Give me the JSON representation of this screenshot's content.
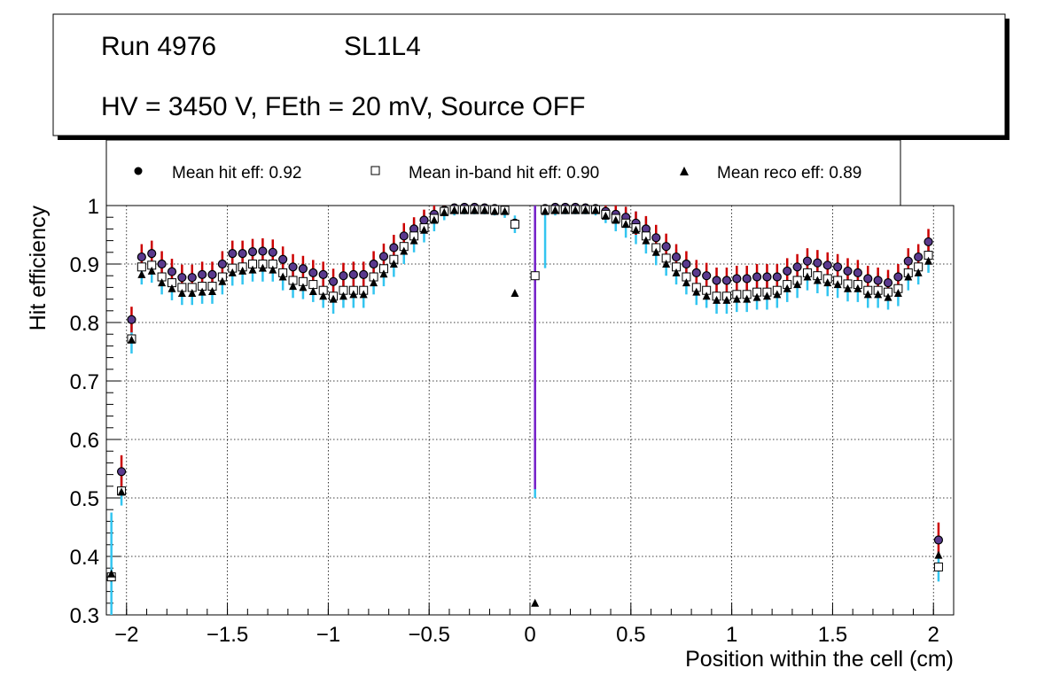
{
  "header": {
    "run": "Run 4976",
    "layer": "SL1L4",
    "conditions": "HV = 3450 V, FEth = 20 mV, Source OFF"
  },
  "legend": {
    "hit": "Mean hit  eff: 0.92",
    "inband": "Mean in-band hit eff: 0.90",
    "reco": "Mean reco eff: 0.89"
  },
  "colors": {
    "hit_err": "#cc0000",
    "inband_err": "#33c5f0",
    "center_err": "#7a1fc8",
    "marker_hit_fill": "#5a3a8e"
  },
  "chart_data": {
    "type": "scatter",
    "xlabel": "Position within the cell (cm)",
    "ylabel": "Hit efficiency",
    "xlim": [
      -2.1,
      2.1
    ],
    "ylim": [
      0.3,
      1.0
    ],
    "xticks": [
      -2,
      -1.5,
      -1,
      -0.5,
      0,
      0.5,
      1,
      1.5,
      2
    ],
    "xtick_labels": [
      "−2",
      "−1.5",
      "−1",
      "−0.5",
      "0",
      "0.5",
      "1",
      "1.5",
      "2"
    ],
    "yticks": [
      0.3,
      0.4,
      0.5,
      0.6,
      0.7,
      0.8,
      0.9,
      1.0
    ],
    "ytick_labels": [
      "0.3",
      "0.4",
      "0.5",
      "0.6",
      "0.7",
      "0.8",
      "0.9",
      "1"
    ],
    "grid": true,
    "x": [
      -2.075,
      -2.025,
      -1.975,
      -1.925,
      -1.875,
      -1.825,
      -1.775,
      -1.725,
      -1.675,
      -1.625,
      -1.575,
      -1.525,
      -1.475,
      -1.425,
      -1.375,
      -1.325,
      -1.275,
      -1.225,
      -1.175,
      -1.125,
      -1.075,
      -1.025,
      -0.975,
      -0.925,
      -0.875,
      -0.825,
      -0.775,
      -0.725,
      -0.675,
      -0.625,
      -0.575,
      -0.525,
      -0.475,
      -0.425,
      -0.375,
      -0.325,
      -0.275,
      -0.225,
      -0.175,
      -0.125,
      -0.075,
      -0.025,
      0.025,
      0.075,
      0.125,
      0.175,
      0.225,
      0.275,
      0.325,
      0.375,
      0.425,
      0.475,
      0.525,
      0.575,
      0.625,
      0.675,
      0.725,
      0.775,
      0.825,
      0.875,
      0.925,
      0.975,
      1.025,
      1.075,
      1.125,
      1.175,
      1.225,
      1.275,
      1.325,
      1.375,
      1.425,
      1.475,
      1.525,
      1.575,
      1.625,
      1.675,
      1.725,
      1.775,
      1.825,
      1.875,
      1.925,
      1.975,
      2.025
    ],
    "series": [
      {
        "name": "Mean hit eff",
        "marker": "circle",
        "values": [
          0.365,
          0.545,
          0.805,
          0.912,
          0.918,
          0.9,
          0.887,
          0.877,
          0.877,
          0.882,
          0.882,
          0.9,
          0.918,
          0.918,
          0.921,
          0.922,
          0.92,
          0.908,
          0.895,
          0.892,
          0.885,
          0.882,
          0.87,
          0.88,
          0.882,
          0.882,
          0.9,
          0.913,
          0.928,
          0.948,
          0.96,
          0.975,
          0.985,
          0.992,
          0.996,
          0.997,
          0.997,
          0.996,
          0.995,
          0.993,
          0.97,
          null,
          null,
          0.995,
          0.997,
          0.997,
          0.997,
          0.996,
          0.995,
          0.99,
          0.985,
          0.98,
          0.97,
          0.96,
          0.945,
          0.93,
          0.912,
          0.9,
          0.885,
          0.88,
          0.872,
          0.872,
          0.875,
          0.875,
          0.878,
          0.878,
          0.878,
          0.888,
          0.895,
          0.905,
          0.902,
          0.898,
          0.895,
          0.888,
          0.885,
          0.875,
          0.872,
          0.868,
          0.878,
          0.905,
          0.912,
          0.938,
          0.428
        ],
        "err": [
          0,
          0.028,
          0.022,
          0.022,
          0.022,
          0.022,
          0.022,
          0.022,
          0.022,
          0.022,
          0.022,
          0.022,
          0.022,
          0.022,
          0.022,
          0.022,
          0.022,
          0.022,
          0.022,
          0.022,
          0.022,
          0.022,
          0.022,
          0.022,
          0.022,
          0.022,
          0.022,
          0.022,
          0.022,
          0.022,
          0.02,
          0.018,
          0.015,
          0.008,
          0.004,
          0.003,
          0.003,
          0.003,
          0.004,
          0.006,
          0,
          0,
          0,
          0.004,
          0.003,
          0.003,
          0.003,
          0.004,
          0.006,
          0.01,
          0.015,
          0.018,
          0.02,
          0.022,
          0.022,
          0.022,
          0.022,
          0.022,
          0.022,
          0.022,
          0.022,
          0.022,
          0.022,
          0.022,
          0.022,
          0.022,
          0.022,
          0.022,
          0.022,
          0.022,
          0.022,
          0.022,
          0.022,
          0.022,
          0.022,
          0.022,
          0.022,
          0.022,
          0.022,
          0.022,
          0.022,
          0.022,
          0.03
        ]
      },
      {
        "name": "Mean in-band hit eff",
        "marker": "open-square",
        "values": [
          0.365,
          0.512,
          0.772,
          0.895,
          0.898,
          0.878,
          0.868,
          0.86,
          0.86,
          0.862,
          0.862,
          0.878,
          0.893,
          0.895,
          0.9,
          0.9,
          0.9,
          0.885,
          0.872,
          0.87,
          0.865,
          0.855,
          0.845,
          0.855,
          0.855,
          0.855,
          0.878,
          0.892,
          0.908,
          0.93,
          0.948,
          0.962,
          0.978,
          0.99,
          0.993,
          0.993,
          0.993,
          0.993,
          0.993,
          0.992,
          0.968,
          null,
          0.88,
          0.993,
          0.993,
          0.993,
          0.993,
          0.993,
          0.993,
          0.985,
          0.978,
          0.97,
          0.962,
          0.948,
          0.928,
          0.91,
          0.895,
          0.878,
          0.86,
          0.855,
          0.845,
          0.845,
          0.848,
          0.848,
          0.852,
          0.852,
          0.855,
          0.865,
          0.872,
          0.885,
          0.88,
          0.875,
          0.872,
          0.866,
          0.865,
          0.855,
          0.855,
          0.852,
          0.858,
          0.885,
          0.895,
          0.915,
          0.382
        ],
        "err": [
          0.11,
          0.025,
          0.025,
          0.03,
          0.03,
          0.03,
          0.03,
          0.03,
          0.03,
          0.03,
          0.03,
          0.03,
          0.03,
          0.03,
          0.03,
          0.03,
          0.03,
          0.03,
          0.03,
          0.03,
          0.03,
          0.03,
          0.03,
          0.03,
          0.03,
          0.03,
          0.03,
          0.03,
          0.03,
          0.03,
          0.028,
          0.025,
          0.022,
          0.015,
          0.01,
          0.008,
          0.008,
          0.008,
          0.01,
          0.013,
          0.015,
          0,
          0.38,
          0.1,
          0.01,
          0.008,
          0.008,
          0.008,
          0.01,
          0.015,
          0.022,
          0.025,
          0.028,
          0.03,
          0.03,
          0.03,
          0.03,
          0.03,
          0.03,
          0.03,
          0.03,
          0.03,
          0.03,
          0.03,
          0.03,
          0.03,
          0.03,
          0.03,
          0.03,
          0.03,
          0.03,
          0.03,
          0.03,
          0.03,
          0.03,
          0.03,
          0.03,
          0.03,
          0.03,
          0.03,
          0.03,
          0.03,
          0.025
        ]
      },
      {
        "name": "Mean reco eff",
        "marker": "triangle",
        "values": [
          0.37,
          0.51,
          0.77,
          0.882,
          0.888,
          0.868,
          0.858,
          0.85,
          0.85,
          0.852,
          0.853,
          0.87,
          0.885,
          0.888,
          0.89,
          0.893,
          0.89,
          0.878,
          0.862,
          0.86,
          0.853,
          0.845,
          0.84,
          0.845,
          0.848,
          0.848,
          0.868,
          0.883,
          0.9,
          0.922,
          0.94,
          0.958,
          0.975,
          0.988,
          0.992,
          0.992,
          0.992,
          0.992,
          0.99,
          0.99,
          0.85,
          null,
          0.32,
          0.99,
          0.992,
          0.992,
          0.992,
          0.992,
          0.992,
          0.982,
          0.975,
          0.968,
          0.958,
          0.94,
          0.92,
          0.9,
          0.885,
          0.868,
          0.852,
          0.845,
          0.838,
          0.838,
          0.84,
          0.84,
          0.843,
          0.845,
          0.848,
          0.858,
          0.865,
          0.878,
          0.872,
          0.868,
          0.865,
          0.858,
          0.858,
          0.848,
          0.848,
          0.843,
          0.85,
          0.878,
          0.885,
          0.905,
          0.402
        ],
        "err": [
          0,
          0,
          0,
          0,
          0,
          0,
          0,
          0,
          0,
          0,
          0,
          0,
          0,
          0,
          0,
          0,
          0,
          0,
          0,
          0,
          0,
          0,
          0,
          0,
          0,
          0,
          0,
          0,
          0,
          0,
          0,
          0,
          0,
          0,
          0,
          0,
          0,
          0,
          0,
          0,
          0,
          0,
          0,
          0,
          0,
          0,
          0,
          0,
          0,
          0,
          0,
          0,
          0,
          0,
          0,
          0,
          0,
          0,
          0,
          0,
          0,
          0,
          0,
          0,
          0,
          0,
          0,
          0,
          0,
          0,
          0,
          0,
          0,
          0,
          0,
          0,
          0,
          0,
          0,
          0,
          0,
          0,
          0
        ]
      }
    ],
    "center_error_bar": {
      "x": 0.025,
      "low": 0.515,
      "high": 1.0
    }
  }
}
